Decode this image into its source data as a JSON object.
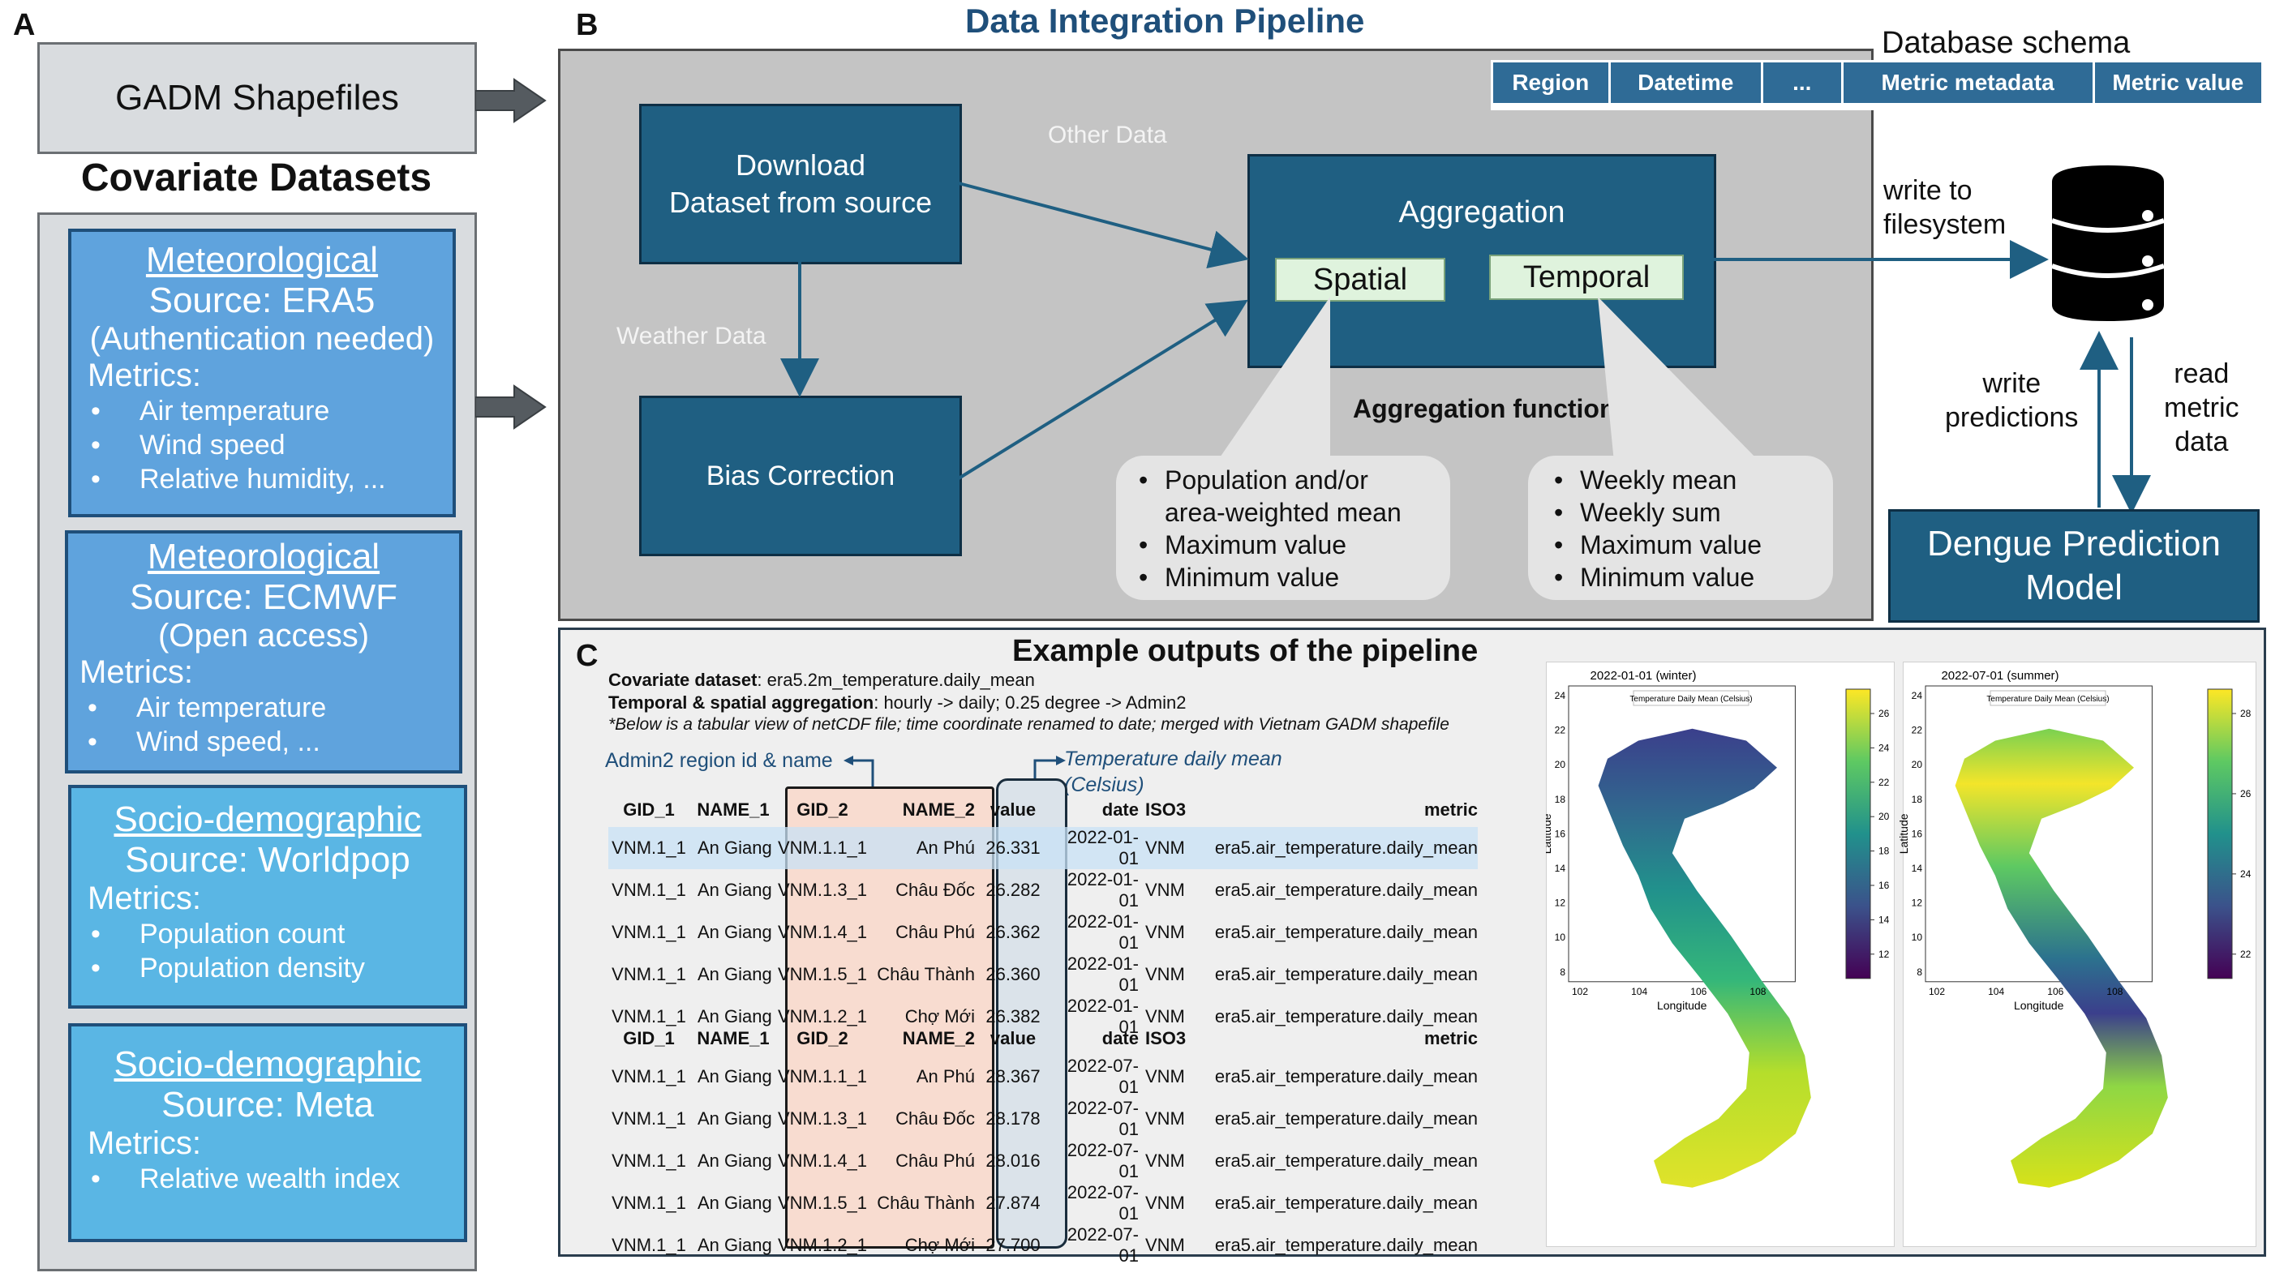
{
  "panel_labels": {
    "a": "A",
    "b": "B",
    "c": "C"
  },
  "panel_a": {
    "gadm_title": "GADM Shapefiles",
    "covariates_title": "Covariate Datasets",
    "boxes": [
      {
        "heading": "Meteorological",
        "source": "Source: ERA5",
        "access": "(Authentication needed)",
        "metrics_label": "Metrics:",
        "metrics": [
          "Air temperature",
          "Wind speed",
          "Relative humidity, ..."
        ]
      },
      {
        "heading": "Meteorological",
        "source": "Source: ECMWF",
        "access": "(Open access)",
        "metrics_label": "Metrics:",
        "metrics": [
          "Air temperature",
          "Wind speed, ..."
        ]
      },
      {
        "heading": "Socio-demographic",
        "source": "Source: Worldpop",
        "metrics_label": "Metrics:",
        "metrics": [
          "Population count",
          "Population density"
        ]
      },
      {
        "heading": "Socio-demographic",
        "source": "Source: Meta",
        "metrics_label": "Metrics:",
        "metrics": [
          "Relative wealth index"
        ]
      }
    ]
  },
  "panel_b": {
    "title": "Data Integration Pipeline",
    "schema_label": "Database schema",
    "schema_columns": [
      "Region",
      "Datetime",
      "...",
      "Metric metadata",
      "Metric value"
    ],
    "download_line1": "Download",
    "download_line2": "Dataset from source",
    "bias_correction": "Bias Correction",
    "other_data": "Other Data",
    "weather_data": "Weather Data",
    "aggregation": "Aggregation",
    "spatial": "Spatial",
    "temporal": "Temporal",
    "aggregation_functions": "Aggregation functions",
    "spatial_functions": [
      "Population and/or area-weighted mean",
      "Maximum value",
      "Minimum value"
    ],
    "temporal_functions": [
      "Weekly mean",
      "Weekly sum",
      "Maximum value",
      "Minimum value"
    ],
    "write_to_fs_line1": "write to",
    "write_to_fs_line2": "filesystem",
    "write_predictions_line1": "write",
    "write_predictions_line2": "predictions",
    "read_metric_line1": "read",
    "read_metric_line2": "metric",
    "read_metric_line3": "data",
    "model_line1": "Dengue Prediction",
    "model_line2": "Model"
  },
  "panel_c": {
    "title": "Example outputs of the pipeline",
    "covariate_label": "Covariate dataset",
    "covariate_value": ": era5.2m_temperature.daily_mean",
    "agg_label": "Temporal & spatial aggregation",
    "agg_value": ": hourly -> daily; 0.25 degree -> Admin2",
    "note": "*Below is a tabular view of netCDF file; time coordinate renamed to date; merged with Vietnam GADM shapefile",
    "admin2_annotation": "Admin2 region id & name",
    "temp_annotation_line1": "Temperature daily mean",
    "temp_annotation_line2": "(Celsius)",
    "columns": [
      "GID_1",
      "NAME_1",
      "GID_2",
      "NAME_2",
      "value",
      "date",
      "ISO3",
      "metric"
    ],
    "table1": [
      [
        "VNM.1_1",
        "An Giang",
        "VNM.1.1_1",
        "An Phú",
        "26.331",
        "2022-01-01",
        "VNM",
        "era5.air_temperature.daily_mean"
      ],
      [
        "VNM.1_1",
        "An Giang",
        "VNM.1.3_1",
        "Châu Đốc",
        "26.282",
        "2022-01-01",
        "VNM",
        "era5.air_temperature.daily_mean"
      ],
      [
        "VNM.1_1",
        "An Giang",
        "VNM.1.4_1",
        "Châu Phú",
        "26.362",
        "2022-01-01",
        "VNM",
        "era5.air_temperature.daily_mean"
      ],
      [
        "VNM.1_1",
        "An Giang",
        "VNM.1.5_1",
        "Châu Thành",
        "26.360",
        "2022-01-01",
        "VNM",
        "era5.air_temperature.daily_mean"
      ],
      [
        "VNM.1_1",
        "An Giang",
        "VNM.1.2_1",
        "Chợ Mới",
        "26.382",
        "2022-01-01",
        "VNM",
        "era5.air_temperature.daily_mean"
      ]
    ],
    "table2": [
      [
        "VNM.1_1",
        "An Giang",
        "VNM.1.1_1",
        "An Phú",
        "28.367",
        "2022-07-01",
        "VNM",
        "era5.air_temperature.daily_mean"
      ],
      [
        "VNM.1_1",
        "An Giang",
        "VNM.1.3_1",
        "Châu Đốc",
        "28.178",
        "2022-07-01",
        "VNM",
        "era5.air_temperature.daily_mean"
      ],
      [
        "VNM.1_1",
        "An Giang",
        "VNM.1.4_1",
        "Châu Phú",
        "28.016",
        "2022-07-01",
        "VNM",
        "era5.air_temperature.daily_mean"
      ],
      [
        "VNM.1_1",
        "An Giang",
        "VNM.1.5_1",
        "Châu Thành",
        "27.874",
        "2022-07-01",
        "VNM",
        "era5.air_temperature.daily_mean"
      ],
      [
        "VNM.1_1",
        "An Giang",
        "VNM.1.2_1",
        "Chợ Mới",
        "27.700",
        "2022-07-01",
        "VNM",
        "era5.air_temperature.daily_mean"
      ]
    ],
    "maps": [
      {
        "title": "2022-01-01 (winter)",
        "legend": "Temperature Daily Mean (Celsius)",
        "xlabel": "Longitude",
        "ylabel": "Latitude",
        "xticks": [
          "102",
          "104",
          "106",
          "108"
        ],
        "yticks": [
          "24",
          "22",
          "20",
          "18",
          "16",
          "14",
          "12",
          "10",
          "8"
        ],
        "cbar_ticks": [
          "26",
          "24",
          "22",
          "20",
          "18",
          "16",
          "14",
          "12"
        ]
      },
      {
        "title": "2022-07-01 (summer)",
        "legend": "Temperature Daily Mean (Celsius)",
        "xlabel": "Longitude",
        "ylabel": "Latitude",
        "xticks": [
          "102",
          "104",
          "106",
          "108"
        ],
        "yticks": [
          "24",
          "22",
          "20",
          "18",
          "16",
          "14",
          "12",
          "10",
          "8"
        ],
        "cbar_ticks": [
          "28",
          "26",
          "24",
          "22"
        ]
      }
    ]
  },
  "colors": {
    "dark_blue": "#1f5f82",
    "title_blue": "#1f4f7a",
    "green_tag": "#dff3dd",
    "salmon": "#f7dcd0",
    "steel": "#dbe3ea"
  }
}
